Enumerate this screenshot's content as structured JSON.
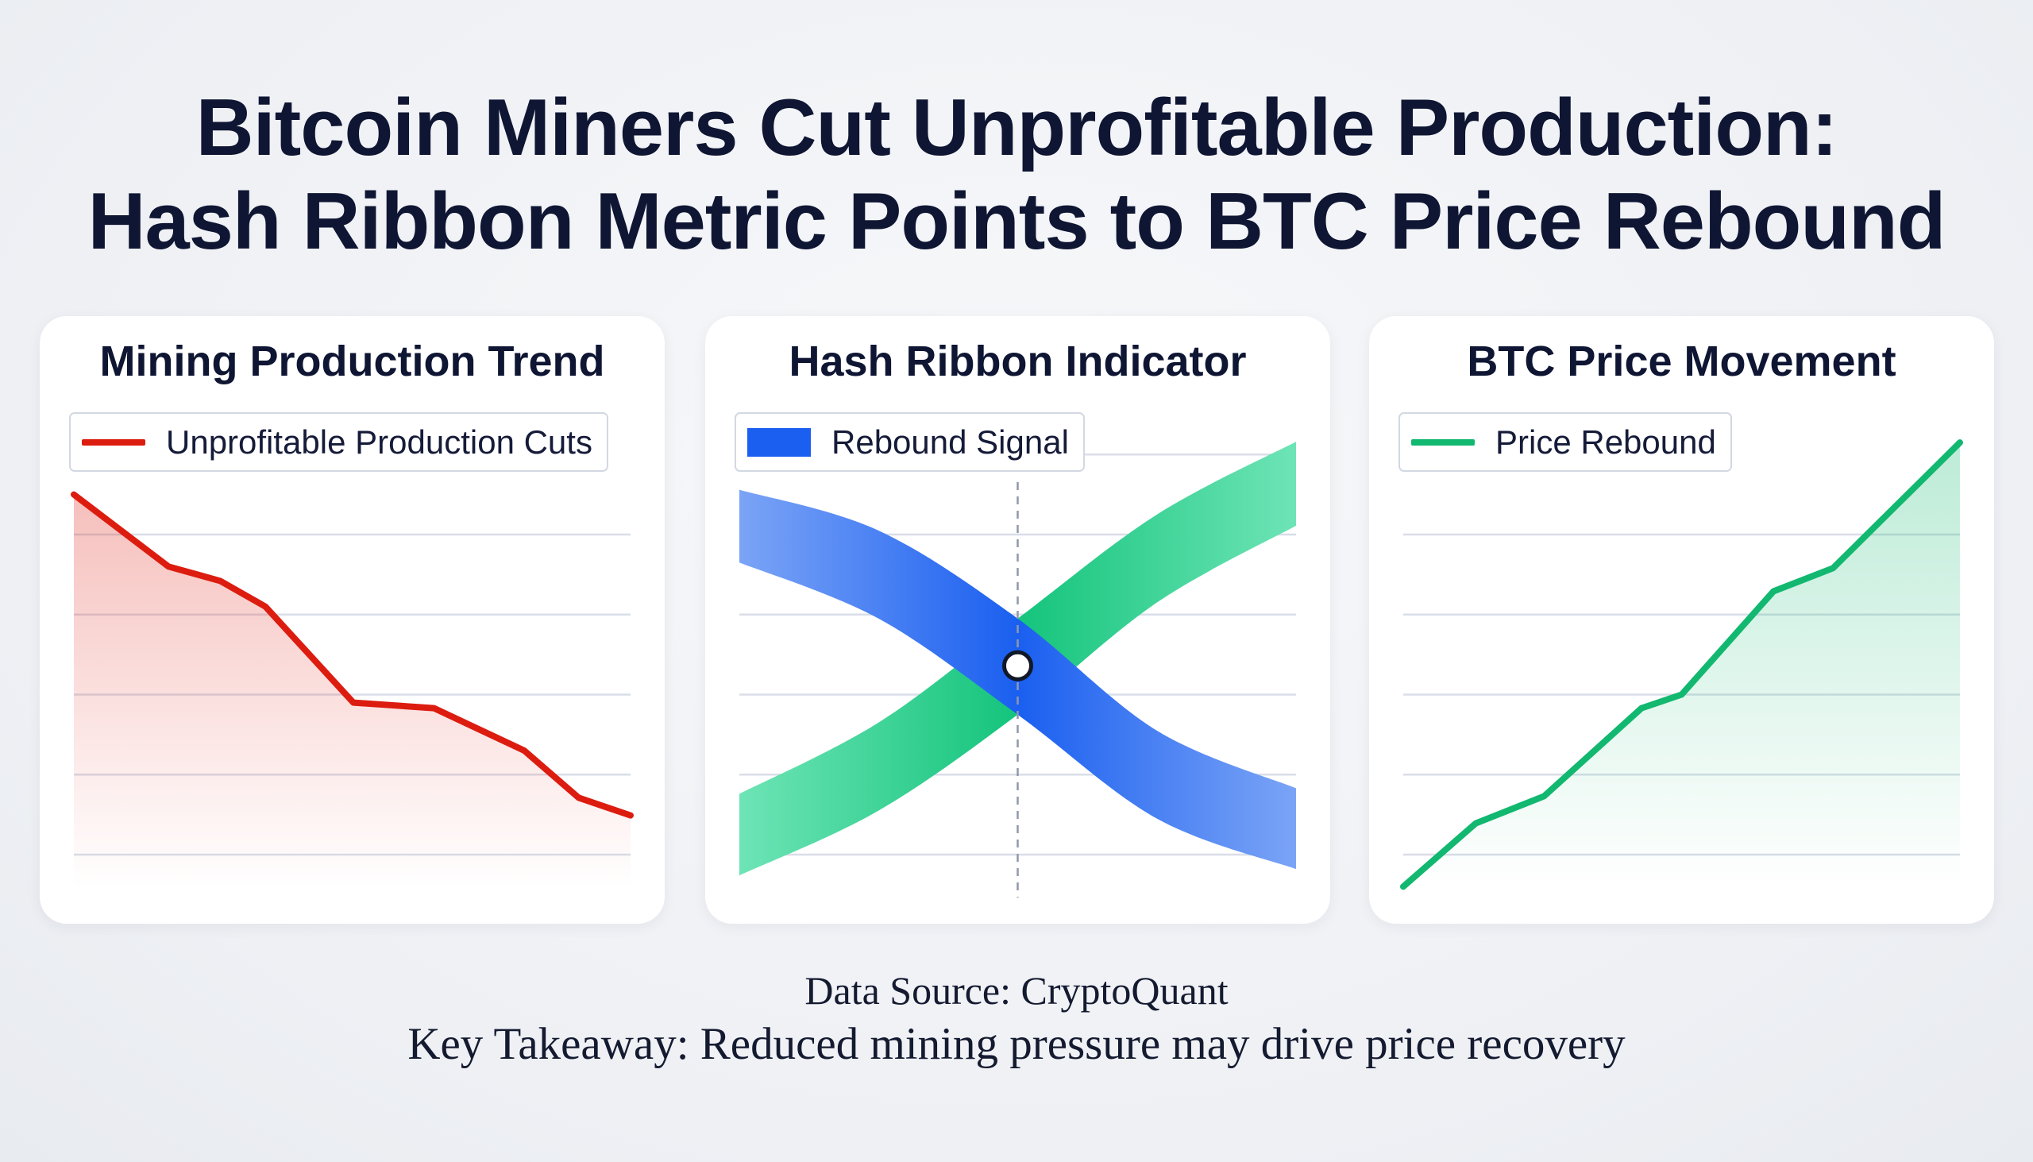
{
  "title": {
    "line1": "Bitcoin Miners Cut Unprofitable Production:",
    "line2": "Hash Ribbon Metric Points to BTC Price Rebound"
  },
  "footer": {
    "source": "Data Source: CryptoQuant",
    "takeaway": "Key Takeaway: Reduced mining pressure may drive price recovery"
  },
  "chart_data": [
    {
      "type": "area",
      "title": "Mining Production Trend",
      "legend": "Unprofitable Production Cuts",
      "legend_placement": "top",
      "grid": true,
      "axes_labels_shown": false,
      "ylim": [
        0,
        4.5
      ],
      "color": "#dd1c10",
      "series": [
        {
          "name": "Unprofitable Production Cuts",
          "x": [
            0,
            1.7,
            2.63,
            3.44,
            5.02,
            6.47,
            8.09,
            9.07,
            10
          ],
          "y": [
            4.5,
            3.6,
            3.42,
            3.1,
            1.9,
            1.83,
            1.3,
            0.71,
            0.49
          ]
        }
      ]
    },
    {
      "type": "ribbon",
      "title": "Hash Ribbon Indicator",
      "legend": "Rebound Signal",
      "legend_placement": "top-left",
      "grid": true,
      "axes_labels_shown": false,
      "crossover_x": 5,
      "crossover_y": 2.36,
      "colors": {
        "falling": "#1a5ff0",
        "rising": "#14c47c"
      },
      "series": [
        {
          "name": "Rebound Signal",
          "role": "falling",
          "x": [
            0,
            2.5,
            5,
            7.5,
            10
          ],
          "lower": [
            3.65,
            2.95,
            1.75,
            0.45,
            -0.18
          ],
          "upper": [
            4.56,
            4.05,
            2.95,
            1.55,
            0.83
          ]
        },
        {
          "role": "rising",
          "x": [
            0,
            2.5,
            5,
            7.5,
            10
          ],
          "lower": [
            -0.26,
            0.55,
            1.75,
            3.15,
            4.11
          ],
          "upper": [
            0.76,
            1.65,
            2.95,
            4.25,
            5.16
          ]
        }
      ]
    },
    {
      "type": "area",
      "title": "BTC Price Movement",
      "legend": "Price Rebound",
      "legend_placement": "top-left",
      "grid": true,
      "axes_labels_shown": false,
      "color": "#12b870",
      "series": [
        {
          "name": "Price Rebound",
          "x": [
            0,
            1.3,
            2.53,
            4.28,
            5,
            6.65,
            7.72,
            10
          ],
          "y": [
            -0.4,
            0.39,
            0.73,
            1.83,
            2.0,
            3.29,
            3.58,
            5.15
          ]
        }
      ]
    }
  ]
}
